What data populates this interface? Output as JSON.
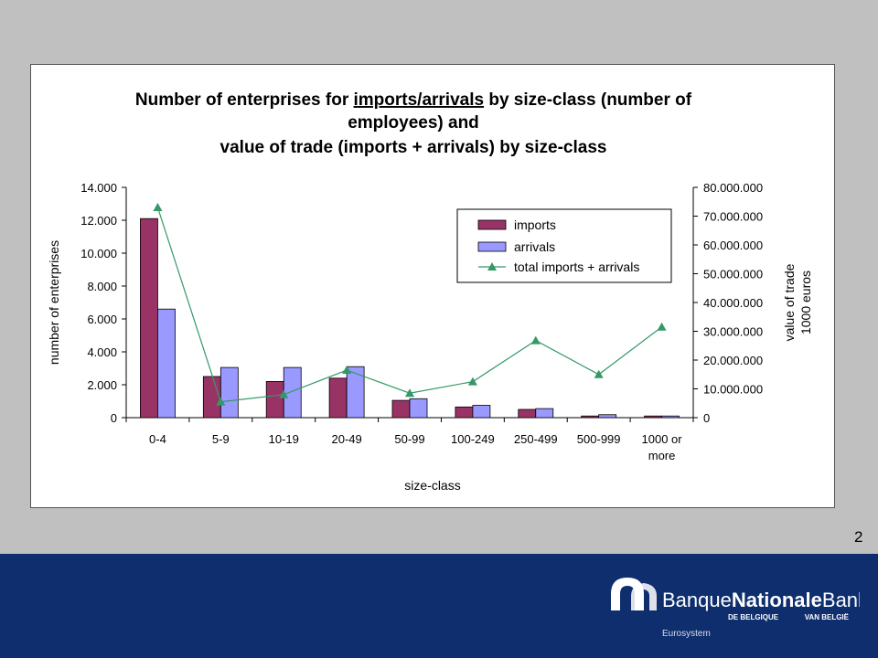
{
  "chart_data": {
    "type": "bar",
    "title_lines": [
      {
        "prefix": "Number of enterprises for ",
        "underlined": "imports/arrivals",
        "suffix": " by size-class (number of"
      },
      {
        "text": "employees) and"
      },
      {
        "text": "value of trade (imports + arrivals) by size-class"
      }
    ],
    "categories": [
      "0-4",
      "5-9",
      "10-19",
      "20-49",
      "50-99",
      "100-249",
      "250-499",
      "500-999",
      "1000 or more"
    ],
    "category_lines": [
      [
        "0-4"
      ],
      [
        "5-9"
      ],
      [
        "10-19"
      ],
      [
        "20-49"
      ],
      [
        "50-99"
      ],
      [
        "100-249"
      ],
      [
        "250-499"
      ],
      [
        "500-999"
      ],
      [
        "1000 or",
        "more"
      ]
    ],
    "series": [
      {
        "name": "imports",
        "type": "bar",
        "axis": "left",
        "color": "#993366",
        "values": [
          12100,
          2500,
          2200,
          2400,
          1050,
          650,
          500,
          100,
          100
        ]
      },
      {
        "name": "arrivals",
        "type": "bar",
        "axis": "left",
        "color": "#9999ff",
        "values": [
          6600,
          3050,
          3050,
          3100,
          1150,
          750,
          550,
          180,
          100
        ]
      },
      {
        "name": "total imports + arrivals",
        "type": "line",
        "axis": "right",
        "color": "#339966",
        "values": [
          73000000,
          5500000,
          8000000,
          16500000,
          8500000,
          12500000,
          26800000,
          15000000,
          31500000
        ]
      }
    ],
    "xlabel": "size-class",
    "ylabel": "number of enterprises",
    "y2label": [
      "value of trade",
      "1000 euros"
    ],
    "ylim": [
      0,
      14000
    ],
    "y2lim": [
      0,
      80000000
    ],
    "yticks": [
      "0",
      "2.000",
      "4.000",
      "6.000",
      "8.000",
      "10.000",
      "12.000",
      "14.000"
    ],
    "y2ticks": [
      "0",
      "10.000.000",
      "20.000.000",
      "30.000.000",
      "40.000.000",
      "50.000.000",
      "60.000.000",
      "70.000.000",
      "80.000.000"
    ],
    "legend_position": "top-right",
    "grid": false
  },
  "page_number": "2",
  "logo": {
    "line1_part1": "Banque",
    "line1_part2": "Nationale",
    "line1_part3": "Bank",
    "sub_left": "DE BELGIQUE",
    "sub_right": "VAN BELGIË",
    "tagline": "Eurosystem"
  },
  "colors": {
    "background": "#c0c0c0",
    "footer": "#0e2e6e",
    "imports": "#993366",
    "arrivals": "#9999ff",
    "total": "#339966"
  }
}
